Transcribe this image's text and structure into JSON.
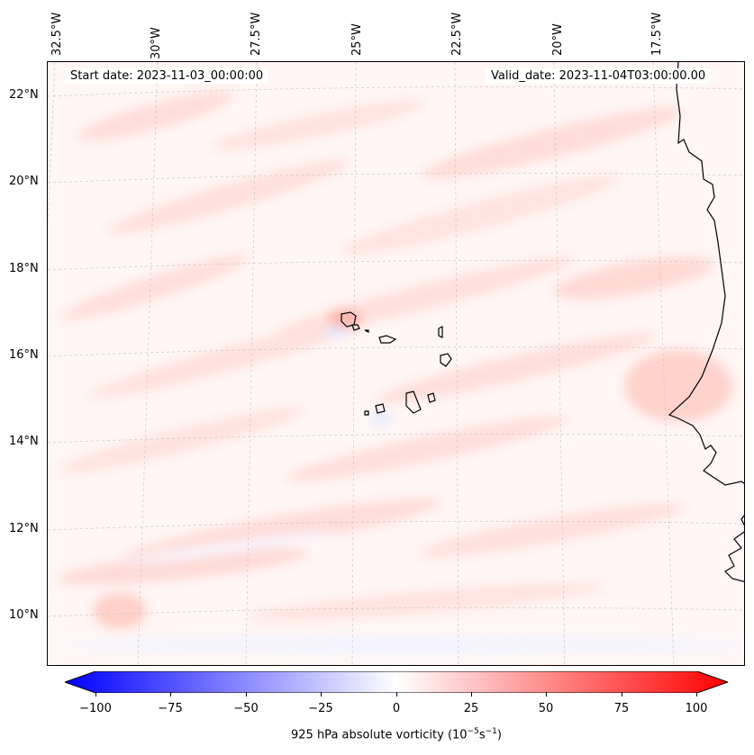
{
  "map": {
    "title_left": "Start date: 2023-11-03_00:00:00",
    "title_right": "Valid_date: 2023-11-04T03:00:00.00",
    "longitude_labels": [
      "32.5°W",
      "30°W",
      "27.5°W",
      "25°W",
      "22.5°W",
      "20°W",
      "17.5°W"
    ],
    "latitude_labels": [
      "22°N",
      "20°N",
      "18°N",
      "16°N",
      "14°N",
      "12°N",
      "10°N"
    ],
    "features": [
      "Cabo Verde islands",
      "West African coastline"
    ],
    "colors": {
      "negative": "#0000ff",
      "neutral": "#ffffff",
      "positive": "#ff0000",
      "gridline": "#b0b0b0",
      "coast": "#000000"
    }
  },
  "colorbar": {
    "ticks": [
      "−100",
      "−75",
      "−50",
      "−25",
      "0",
      "25",
      "50",
      "75",
      "100"
    ],
    "label_prefix": "925 hPa absolute vorticity (10",
    "label_exp1": "−5",
    "label_mid": "s",
    "label_exp2": "−1",
    "label_suffix": ")",
    "range": [
      -100,
      100
    ]
  }
}
